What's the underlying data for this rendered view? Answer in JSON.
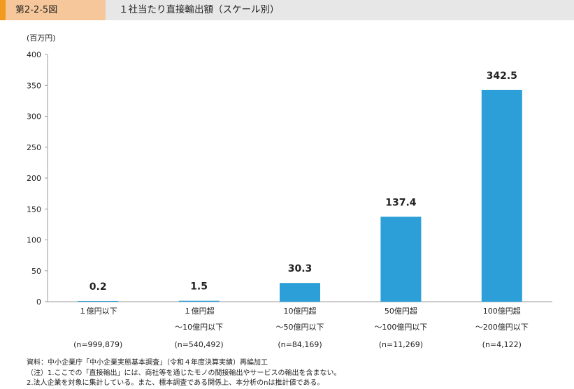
{
  "header": {
    "figure_number": "第2-2-5図",
    "title": "１社当たり直接輸出額（スケール別）"
  },
  "chart_data": {
    "type": "bar",
    "title": "１社当たり直接輸出額（スケール別）",
    "unit_label": "(百万円)",
    "ylim": [
      0,
      400
    ],
    "yticks": [
      0,
      50,
      100,
      150,
      200,
      250,
      300,
      350,
      400
    ],
    "categories": [
      [
        "１億円以下",
        "",
        "(n=999,879)"
      ],
      [
        "１億円超",
        "～10億円以下",
        "(n=540,492)"
      ],
      [
        "10億円超",
        "～50億円以下",
        "(n=84,169)"
      ],
      [
        "50億円超",
        "～100億円以下",
        "(n=11,269)"
      ],
      [
        "100億円超",
        "～200億円以下",
        "(n=4,122)"
      ]
    ],
    "values": [
      0.2,
      1.5,
      30.3,
      137.4,
      342.5
    ],
    "value_labels": [
      "0.2",
      "1.5",
      "30.3",
      "137.4",
      "342.5"
    ],
    "bar_color": "#2c9fd9",
    "grid": false
  },
  "notes": [
    "資料：中小企業庁「中小企業実態基本調査」（令和４年度決算実績）再編加工",
    "（注）1.ここでの「直接輸出」には、商社等を通じたモノの間接輸出やサービスの輸出を含まない。",
    "2.法人企業を対象に集計している。また、標本調査である関係上、本分析のnは推計値である。"
  ]
}
